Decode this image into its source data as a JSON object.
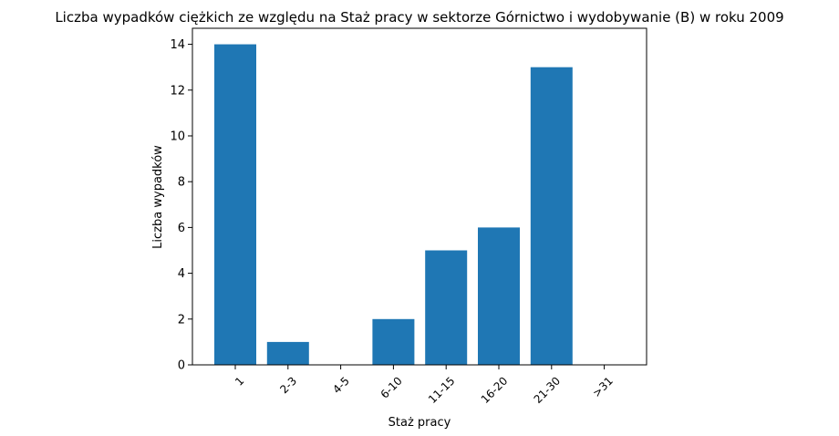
{
  "chart_data": {
    "type": "bar",
    "title": "Liczba wypadków ciężkich ze względu na Staż pracy w sektorze Górnictwo i wydobywanie (B)   w roku 2009",
    "xlabel": "Staż pracy",
    "ylabel": "Liczba wypadków",
    "categories": [
      "1",
      "2-3",
      "4-5",
      "6-10",
      "11-15",
      "16-20",
      "21-30",
      ">31"
    ],
    "values": [
      14,
      1,
      0,
      2,
      5,
      6,
      13,
      0
    ],
    "ylim": [
      0,
      14.7
    ],
    "yticks": [
      0,
      2,
      4,
      6,
      8,
      10,
      12,
      14
    ],
    "grid": false,
    "legend": "none",
    "bar_color": "#1f77b4"
  }
}
